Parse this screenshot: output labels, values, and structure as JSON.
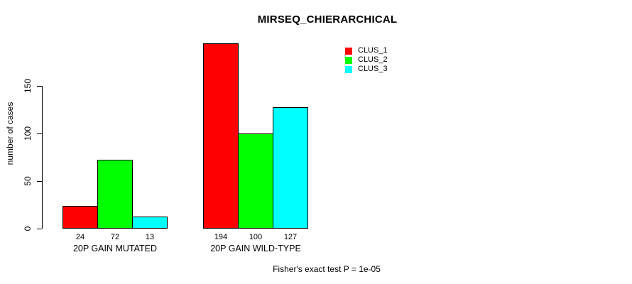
{
  "title": "MIRSEQ_CHIERARCHICAL",
  "y_axis": {
    "label": "number of cases",
    "tick_labels": [
      "0",
      "50",
      "100",
      "150"
    ]
  },
  "footer": "Fisher's exact test P = 1e-05",
  "legend": {
    "items": [
      {
        "label": "CLUS_1",
        "color": "#FF0000"
      },
      {
        "label": "CLUS_2",
        "color": "#00FF00"
      },
      {
        "label": "CLUS_3",
        "color": "#00FFFF"
      }
    ]
  },
  "chart_data": {
    "type": "bar",
    "title": "MIRSEQ_CHIERARCHICAL",
    "ylabel": "number of cases",
    "xlabel": "",
    "categories": [
      "20P GAIN MUTATED",
      "20P GAIN WILD-TYPE"
    ],
    "series": [
      {
        "name": "CLUS_1",
        "color": "#FF0000",
        "values": [
          24,
          194
        ]
      },
      {
        "name": "CLUS_2",
        "color": "#00FF00",
        "values": [
          72,
          100
        ]
      },
      {
        "name": "CLUS_3",
        "color": "#00FFFF",
        "values": [
          13,
          127
        ]
      }
    ],
    "bar_value_labels": [
      [
        "24",
        "72",
        "13"
      ],
      [
        "194",
        "100",
        "127"
      ]
    ],
    "yticks": [
      0,
      50,
      100,
      150
    ],
    "ylim": [
      0,
      150
    ],
    "grid": false,
    "bar_border_color": "#000000",
    "legend_position": "top-right",
    "annotation": "Fisher's exact test P = 1e-05"
  }
}
